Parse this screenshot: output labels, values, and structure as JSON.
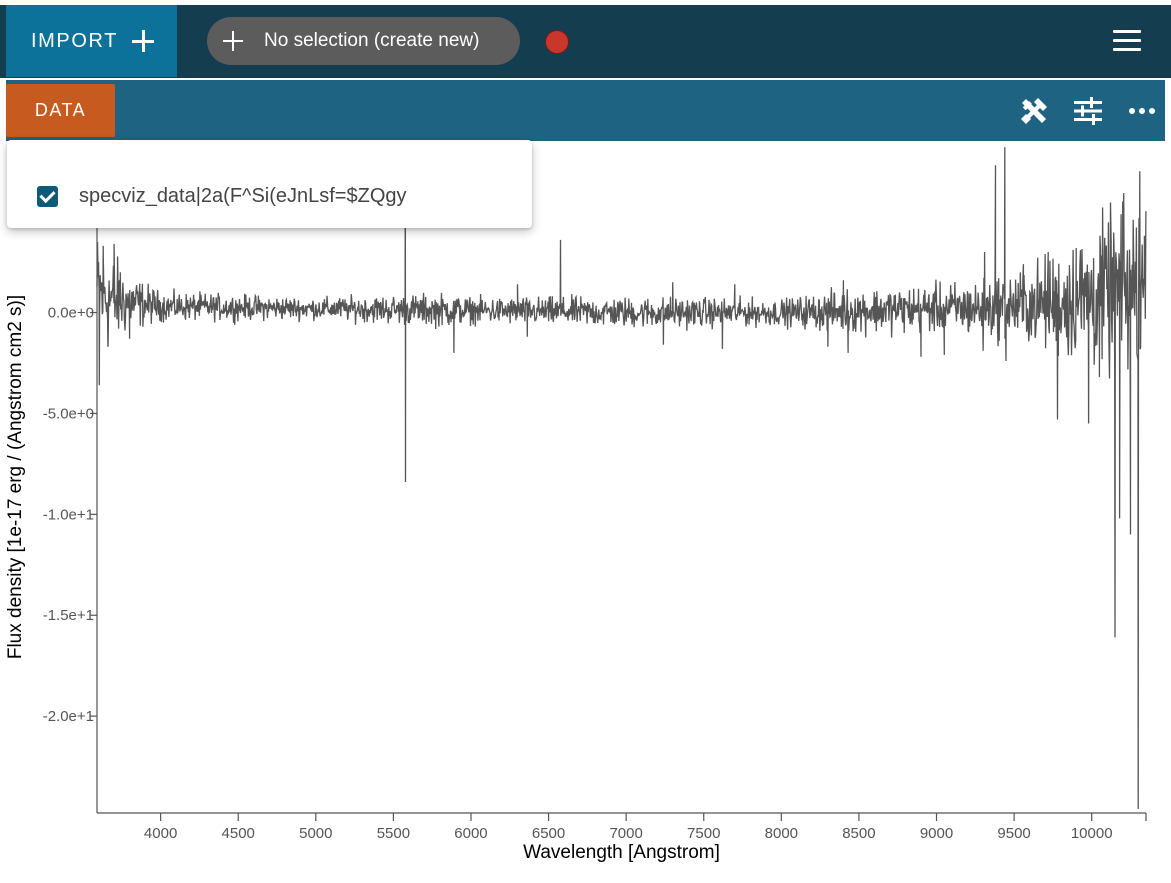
{
  "app_bar": {
    "import_label": "IMPORT",
    "subset_label": "No selection (create new)",
    "status_color": "#c9372c"
  },
  "toolbar": {
    "data_label": "DATA",
    "icons": [
      "tools-icon",
      "sliders-icon",
      "more-horizontal-icon"
    ]
  },
  "data_menu": {
    "items": [
      {
        "label": "specviz_data|2a(F^Si(eJnLsf=$ZQgy",
        "checked": true
      }
    ]
  },
  "chart_data": {
    "type": "line",
    "xlabel": "Wavelength [Angstrom]",
    "ylabel": "Flux density [1e-17 erg / (Angstrom cm2 s)]",
    "xlim": [
      3590,
      10350
    ],
    "ylim": [
      -24.8,
      8.5
    ],
    "x_ticks": [
      4000,
      4500,
      5000,
      5500,
      6000,
      6500,
      7000,
      7500,
      8000,
      8500,
      9000,
      9500,
      10000
    ],
    "x_tick_labels": [
      "4000",
      "4500",
      "5000",
      "5500",
      "6000",
      "6500",
      "7000",
      "7500",
      "8000",
      "8500",
      "9000",
      "9500",
      "10000"
    ],
    "y_ticks": [
      0,
      -5,
      -10,
      -15,
      -20
    ],
    "y_tick_labels": [
      "0.0e+0",
      "-5.0e+0",
      "-1.0e+1",
      "-1.5e+1",
      "-2.0e+1"
    ],
    "series": [
      {
        "color": "#555555",
        "baseline_points": [
          [
            3590,
            1.0
          ],
          [
            3700,
            0.6
          ],
          [
            4000,
            0.3
          ],
          [
            5000,
            0.2
          ],
          [
            6000,
            0.1
          ],
          [
            7000,
            0.0
          ],
          [
            8000,
            0.0
          ],
          [
            9000,
            0.2
          ],
          [
            9300,
            0.2
          ],
          [
            9800,
            0.5
          ],
          [
            10350,
            1.2
          ]
        ],
        "noise_points": [
          [
            3590,
            2.6
          ],
          [
            3800,
            1.2
          ],
          [
            4000,
            0.6
          ],
          [
            5000,
            0.45
          ],
          [
            5850,
            0.7
          ],
          [
            6000,
            0.55
          ],
          [
            7200,
            0.65
          ],
          [
            8000,
            0.55
          ],
          [
            8400,
            0.9
          ],
          [
            9000,
            1.0
          ],
          [
            9300,
            1.2
          ],
          [
            9600,
            1.6
          ],
          [
            9900,
            2.6
          ],
          [
            10350,
            4.0
          ]
        ],
        "spikes": [
          [
            3600,
            2.5
          ],
          [
            3605,
            -3.6
          ],
          [
            3630,
            3.3
          ],
          [
            3660,
            -1.7
          ],
          [
            3700,
            3.4
          ],
          [
            3740,
            2.0
          ],
          [
            3800,
            -1.3
          ],
          [
            5577,
            8.4
          ],
          [
            5578,
            -8.4
          ],
          [
            5890,
            -2.0
          ],
          [
            6300,
            1.4
          ],
          [
            6363,
            -1.2
          ],
          [
            6577,
            3.6
          ],
          [
            7240,
            -1.6
          ],
          [
            7300,
            1.5
          ],
          [
            7620,
            -1.8
          ],
          [
            7700,
            1.4
          ],
          [
            8300,
            -1.7
          ],
          [
            8400,
            1.6
          ],
          [
            8430,
            -2.0
          ],
          [
            8900,
            -2.2
          ],
          [
            9050,
            -2.1
          ],
          [
            9300,
            -1.9
          ],
          [
            9310,
            3.0
          ],
          [
            9380,
            7.3
          ],
          [
            9440,
            8.2
          ],
          [
            9448,
            -2.4
          ],
          [
            9560,
            2.4
          ],
          [
            9720,
            3.0
          ],
          [
            9780,
            -5.3
          ],
          [
            9900,
            3.2
          ],
          [
            9980,
            -5.5
          ],
          [
            10050,
            -3.2
          ],
          [
            10150,
            -16.1
          ],
          [
            10180,
            -10.2
          ],
          [
            10200,
            5.5
          ],
          [
            10250,
            -11.0
          ],
          [
            10300,
            -24.6
          ],
          [
            10310,
            7.0
          ],
          [
            10340,
            3.8
          ]
        ]
      }
    ]
  }
}
